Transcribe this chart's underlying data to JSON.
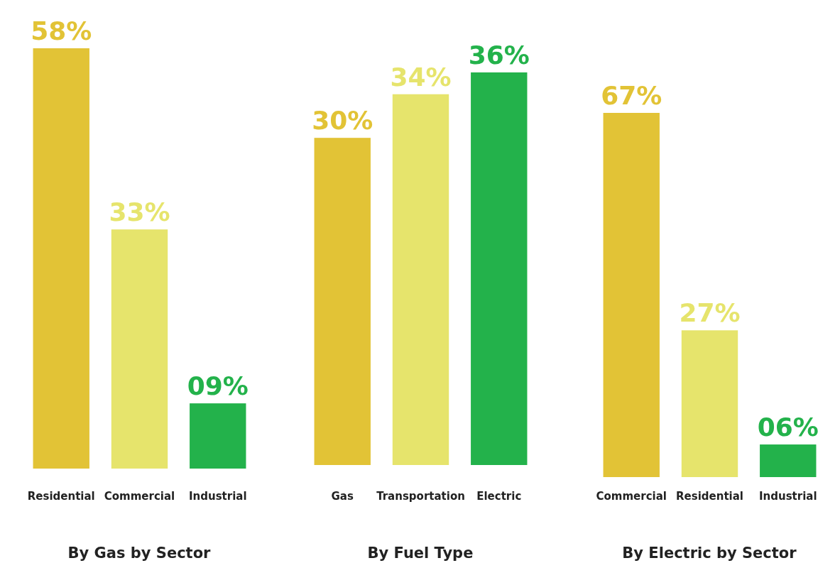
{
  "chart_data": [
    {
      "type": "bar",
      "title": "By Gas by Sector",
      "categories": [
        "Residential",
        "Commercial",
        "Industrial"
      ],
      "values": [
        58,
        33,
        9
      ],
      "colors": [
        "#e2c336",
        "#e6e46c",
        "#23b24b"
      ],
      "value_labels": [
        "58%",
        "33%",
        "09%"
      ]
    },
    {
      "type": "bar",
      "title": "By Fuel Type",
      "categories": [
        "Gas",
        "Transportation",
        "Electric"
      ],
      "values": [
        30,
        34,
        36
      ],
      "colors": [
        "#e2c336",
        "#e6e46c",
        "#23b24b"
      ],
      "value_labels": [
        "30%",
        "34%",
        "36%"
      ]
    },
    {
      "type": "bar",
      "title": "By Electric by Sector",
      "categories": [
        "Commercial",
        "Residential",
        "Industrial"
      ],
      "values": [
        67,
        27,
        6
      ],
      "colors": [
        "#e2c336",
        "#e6e46c",
        "#23b24b"
      ],
      "value_labels": [
        "67%",
        "27%",
        "06%"
      ]
    }
  ]
}
